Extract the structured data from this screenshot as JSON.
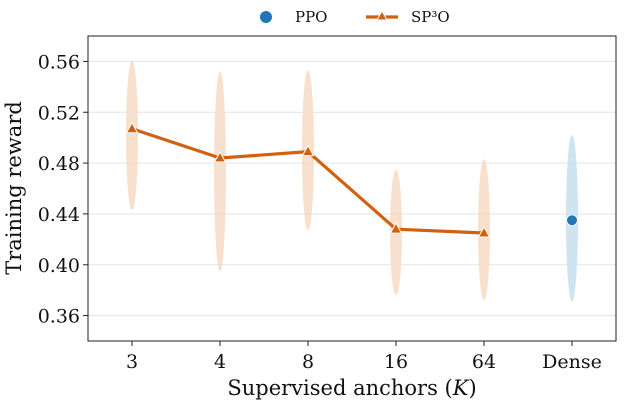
{
  "chart_data": {
    "type": "line",
    "xlabel": "Supervised anchors (K)",
    "ylabel": "Training reward",
    "categories": [
      "3",
      "4",
      "8",
      "16",
      "64",
      "Dense"
    ],
    "ylim": [
      0.34,
      0.58
    ],
    "yticks": [
      "0.36",
      "0.40",
      "0.44",
      "0.48",
      "0.52",
      "0.56"
    ],
    "grid": "horizontal",
    "legend_position": "top-center",
    "series": [
      {
        "name": "PPO",
        "marker": "circle",
        "color": "#1f77b4",
        "x": [
          "Dense"
        ],
        "values": [
          0.435
        ],
        "spread": [
          [
            0.371,
            0.502
          ]
        ]
      },
      {
        "name": "SP³O",
        "marker": "triangle",
        "color": "#d2610f",
        "x": [
          "3",
          "4",
          "8",
          "16",
          "64"
        ],
        "values": [
          0.507,
          0.484,
          0.489,
          0.428,
          0.425
        ],
        "spread": [
          [
            0.443,
            0.561
          ],
          [
            0.395,
            0.552
          ],
          [
            0.427,
            0.553
          ],
          [
            0.376,
            0.475
          ],
          [
            0.372,
            0.483
          ]
        ]
      }
    ]
  }
}
